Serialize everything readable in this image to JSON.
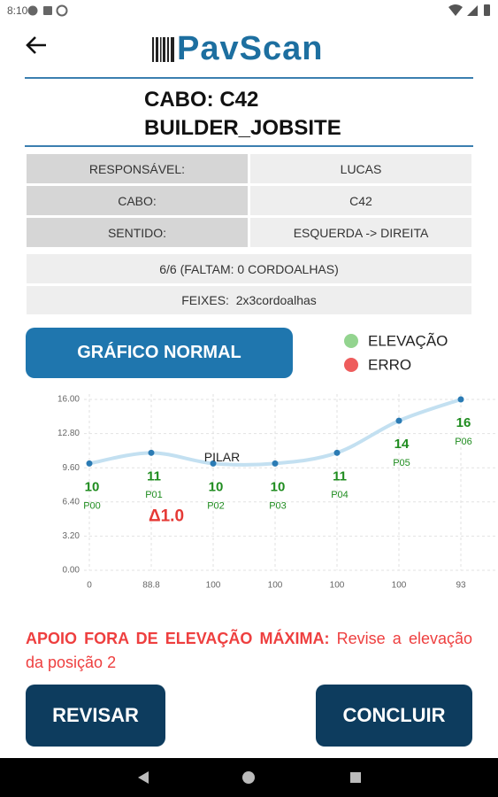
{
  "status_bar": {
    "time": "8:10"
  },
  "header": {
    "title": "PavScan"
  },
  "cable": {
    "title": "CABO: C42",
    "jobsite": "BUILDER_JOBSITE"
  },
  "info_table": {
    "rows": [
      [
        "RESPONSÁVEL:",
        "LUCAS"
      ],
      [
        "CABO:",
        "C42"
      ],
      [
        "SENTIDO:",
        "ESQUERDA -> DIREITA"
      ]
    ]
  },
  "summary": {
    "count": "6/6 (FALTAM: 0 CORDOALHAS)",
    "bundles_label": "FEIXES:",
    "bundles": "2x3cordoalhas"
  },
  "chart_button": "GRÁFICO NORMAL",
  "chart_data": {
    "type": "line",
    "categories": [
      "0",
      "88.8",
      "100",
      "100",
      "100",
      "100",
      "93"
    ],
    "series": [
      {
        "name": "ELEVAÇÃO",
        "values": [
          10,
          11,
          10,
          10,
          11,
          14,
          16
        ],
        "color": "#2b7bb4",
        "line_color": "#c3e0f1",
        "label_color": "#1f8c1f",
        "point_labels": [
          "P00",
          "P01",
          "P02",
          "P03",
          "P04",
          "P05",
          "P06"
        ]
      }
    ],
    "legend": [
      {
        "name": "ELEVAÇÃO",
        "color": "#93d48f"
      },
      {
        "name": "ERRO",
        "color": "#ee5c5c"
      }
    ],
    "annotations": [
      {
        "text": "PILAR",
        "color": "#222222"
      },
      {
        "text": "Δ1.0",
        "color": "#e53935"
      }
    ],
    "ylim": [
      0,
      16
    ],
    "yticks": [
      {
        "value": 0,
        "label": "0.00"
      },
      {
        "value": 3.2,
        "label": "3.20"
      },
      {
        "value": 6.4,
        "label": "6.40"
      },
      {
        "value": 9.6,
        "label": "9.60"
      },
      {
        "value": 12.8,
        "label": "12.80"
      },
      {
        "value": 16,
        "label": "16.00"
      }
    ],
    "grid": true
  },
  "warning": {
    "emphasis": "APOIO FORA DE ELEVAÇÃO MÁXIMA:",
    "text": "Revise a elevação da posição 2"
  },
  "actions": {
    "review": "REVISAR",
    "finish": "CONCLUIR"
  }
}
